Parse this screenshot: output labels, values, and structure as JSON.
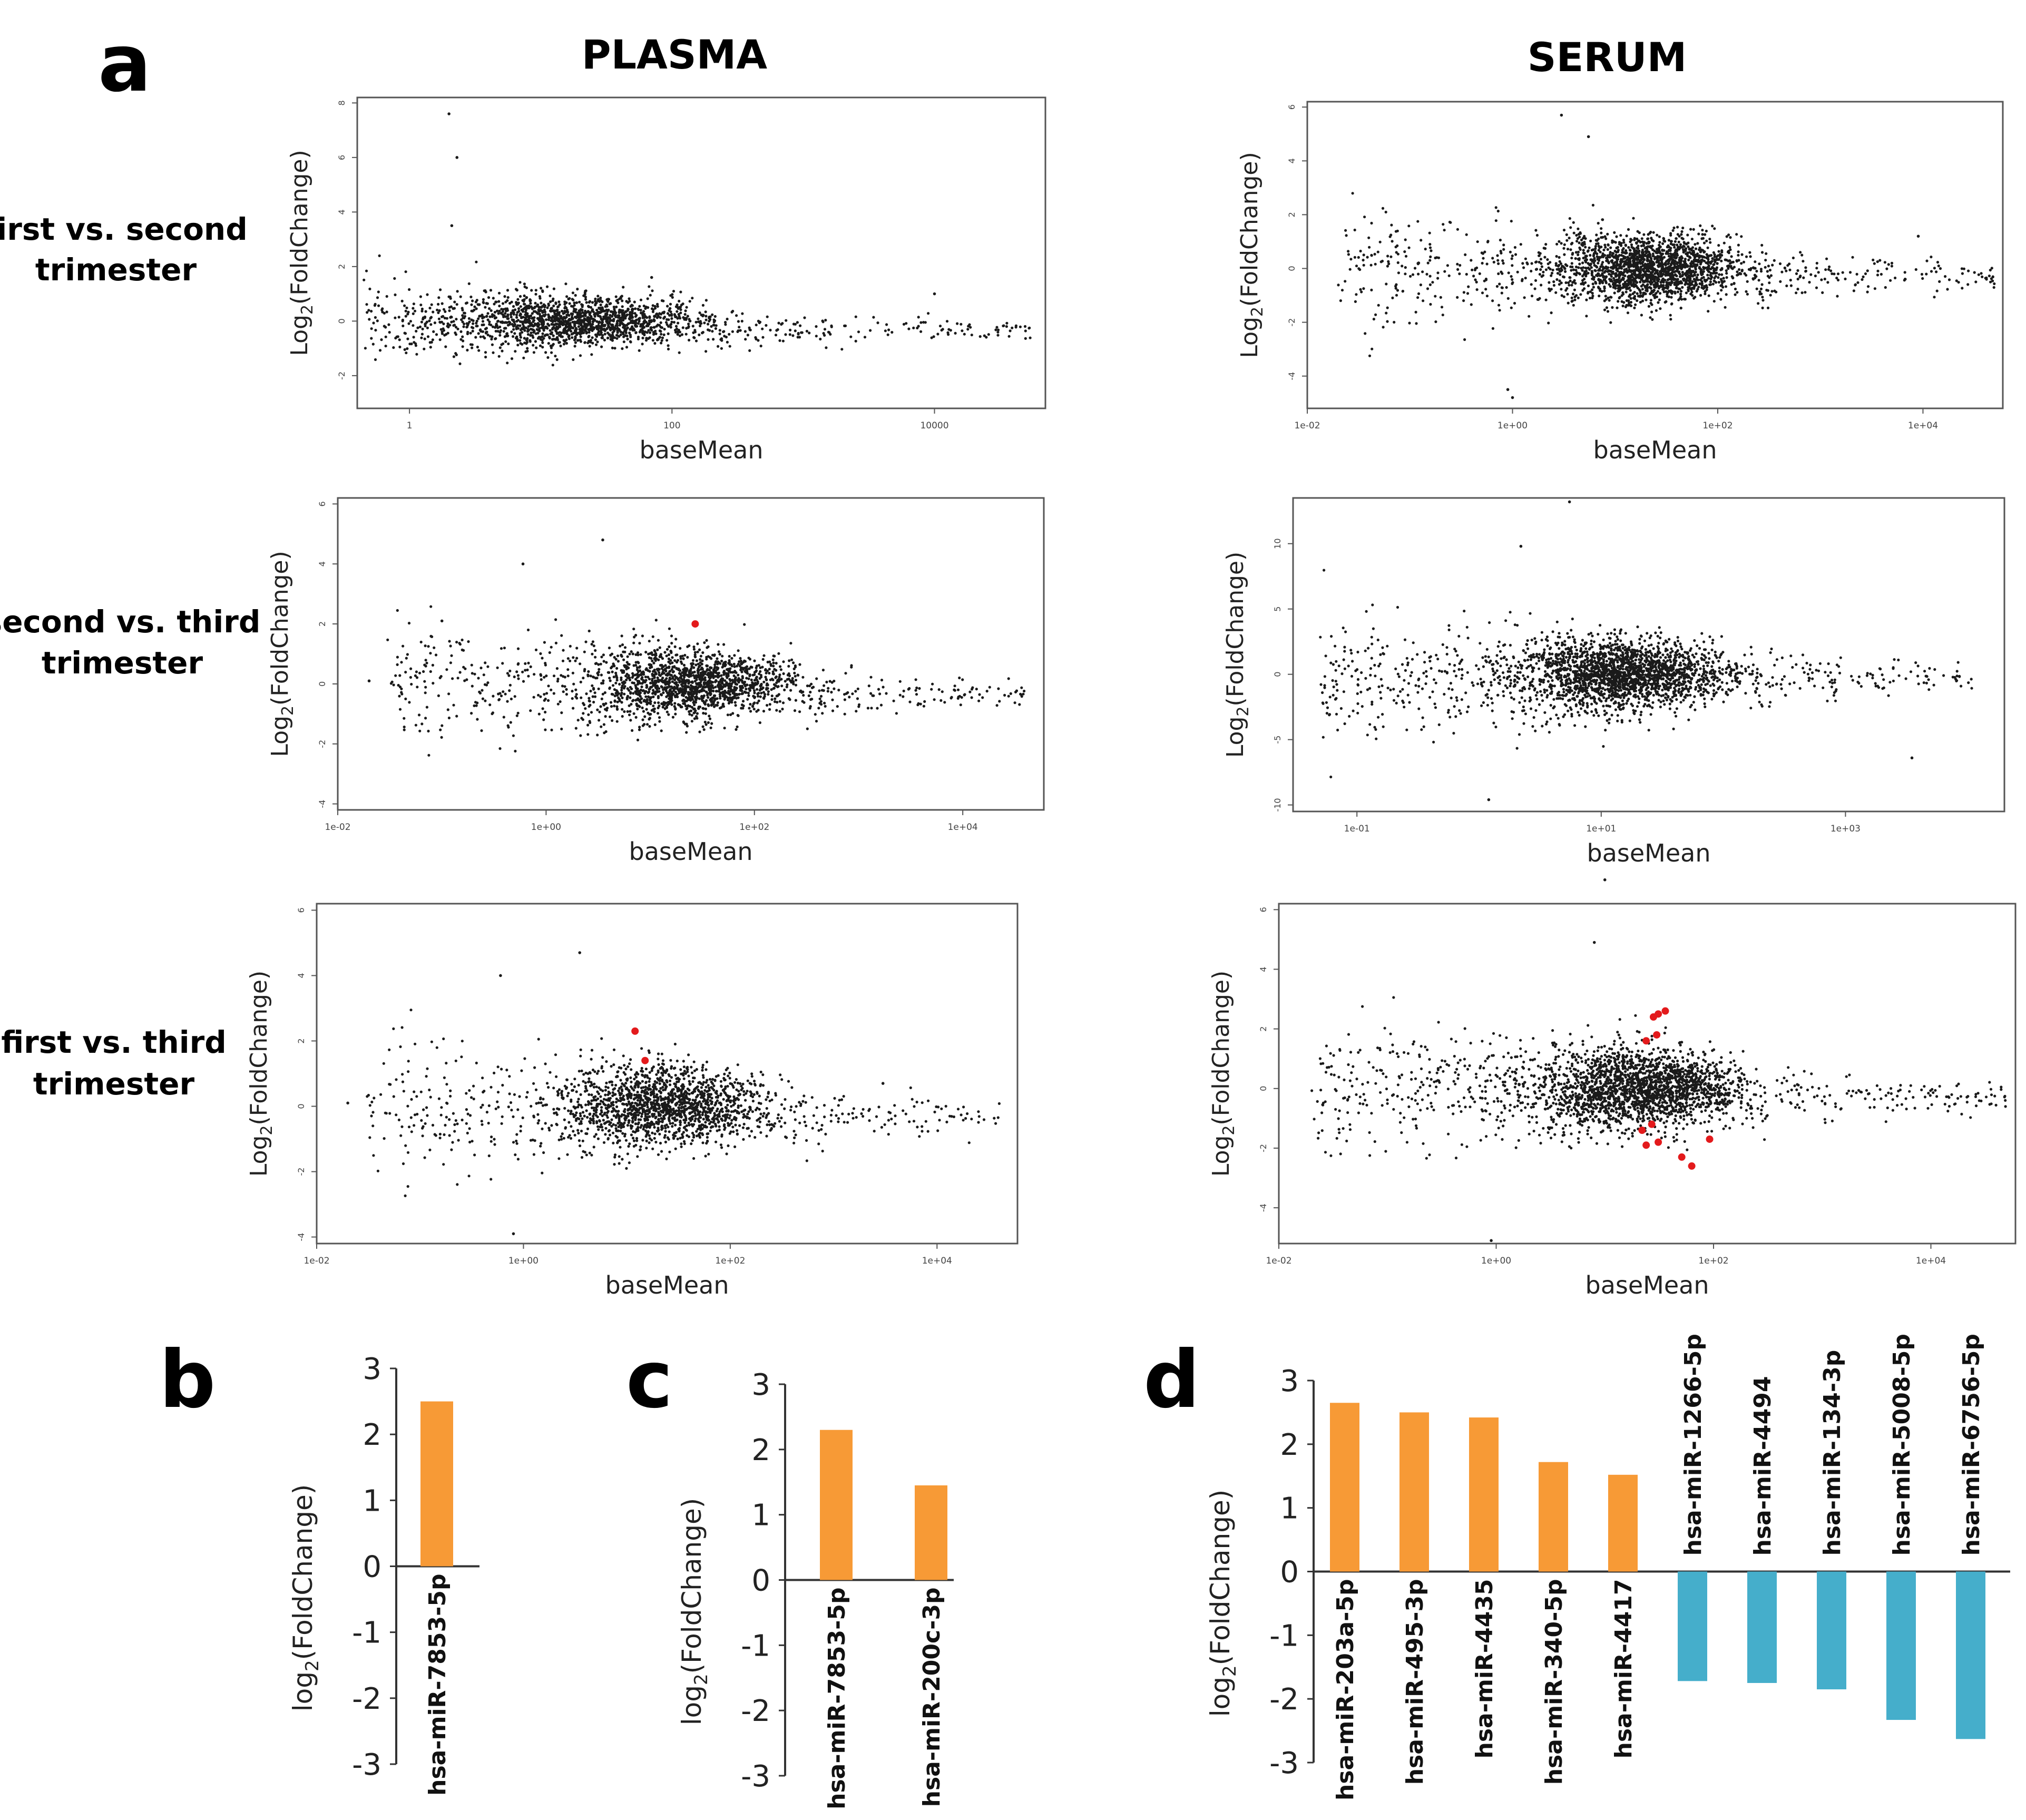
{
  "panel_labels": {
    "a": "a",
    "b": "b",
    "c": "c",
    "d": "d"
  },
  "column_titles": {
    "plasma": "PLASMA",
    "serum": "SERUM"
  },
  "row_labels": [
    {
      "line1": "first vs. second",
      "line2": "trimester"
    },
    {
      "line1": "second vs. third",
      "line2": "trimester"
    },
    {
      "line1": "first vs. third",
      "line2": "trimester"
    }
  ],
  "colors": {
    "points": "#1a1a1a",
    "significant": "#e31a1c",
    "up_bar": "#f79a36",
    "down_bar": "#45aecb",
    "axis": "#333333"
  },
  "chart_data": [
    {
      "id": "ma-plasma-1v2",
      "type": "scatter",
      "title": "PLASMA",
      "xlabel": "baseMean",
      "ylabel": "Log2(FoldChange)",
      "xscale": "log10",
      "xlim": [
        0.4,
        70000
      ],
      "ylim": [
        -3.2,
        8.2
      ],
      "xticks": [
        {
          "v": 1,
          "label": "1"
        },
        {
          "v": 100,
          "label": "100"
        },
        {
          "v": 10000,
          "label": "10000"
        }
      ],
      "yticks": [
        -2,
        0,
        2,
        4,
        6,
        8
      ],
      "cloud": {
        "n": 1900,
        "center": 20,
        "spread": 0.9,
        "xmin": 0.45,
        "tail": 60000,
        "ysd_low": 1.0,
        "ysd_high": 0.2,
        "seed": 11
      },
      "notable_points": [
        {
          "x": 2.0,
          "y": 7.6
        },
        {
          "x": 2.3,
          "y": 6.0
        },
        {
          "x": 2.1,
          "y": 3.5
        },
        {
          "x": 70,
          "y": 1.6
        },
        {
          "x": 10000,
          "y": 1.0
        }
      ],
      "significant_points": []
    },
    {
      "id": "ma-serum-1v2",
      "type": "scatter",
      "title": "SERUM",
      "xlabel": "baseMean",
      "ylabel": "Log2(FoldChange)",
      "xscale": "log10",
      "xlim": [
        0.01,
        60000
      ],
      "ylim": [
        -5.2,
        6.2
      ],
      "xticks": [
        {
          "v": 0.01,
          "label": "1e-02"
        },
        {
          "v": 1,
          "label": "1e+00"
        },
        {
          "v": 100,
          "label": "1e+02"
        },
        {
          "v": 10000,
          "label": "1e+04"
        }
      ],
      "yticks": [
        -4,
        -2,
        0,
        2,
        4,
        6
      ],
      "cloud": {
        "n": 2300,
        "center": 22,
        "spread": 0.8,
        "xmin": 0.02,
        "tail": 50000,
        "ysd_low": 1.6,
        "ysd_high": 0.3,
        "seed": 23
      },
      "notable_points": [
        {
          "x": 3.0,
          "y": 5.7
        },
        {
          "x": 5.5,
          "y": 4.9
        },
        {
          "x": 1.0,
          "y": -4.8
        },
        {
          "x": 0.9,
          "y": -4.5
        },
        {
          "x": 9000,
          "y": 1.2
        }
      ],
      "significant_points": []
    },
    {
      "id": "ma-plasma-2v3",
      "type": "scatter",
      "title": "PLASMA",
      "xlabel": "baseMean",
      "ylabel": "Log2(FoldChange)",
      "xscale": "log10",
      "xlim": [
        0.01,
        60000
      ],
      "ylim": [
        -4.2,
        6.2
      ],
      "xticks": [
        {
          "v": 0.01,
          "label": "1e-02"
        },
        {
          "v": 1,
          "label": "1e+00"
        },
        {
          "v": 100,
          "label": "1e+02"
        },
        {
          "v": 10000,
          "label": "1e+04"
        }
      ],
      "yticks": [
        -4,
        -2,
        0,
        2,
        4,
        6
      ],
      "cloud": {
        "n": 2000,
        "center": 25,
        "spread": 0.85,
        "xmin": 0.03,
        "tail": 40000,
        "ysd_low": 1.5,
        "ysd_high": 0.25,
        "seed": 37
      },
      "notable_points": [
        {
          "x": 3.5,
          "y": 4.8
        },
        {
          "x": 0.6,
          "y": 4.0
        },
        {
          "x": 0.02,
          "y": 0.1
        },
        {
          "x": 0.1,
          "y": 2.1
        }
      ],
      "significant_points": [
        {
          "x": 27,
          "y": 2.0
        }
      ]
    },
    {
      "id": "ma-serum-2v3",
      "type": "scatter",
      "title": "SERUM",
      "xlabel": "baseMean",
      "ylabel": "Log2(FoldChange)",
      "xscale": "log10",
      "xlim": [
        0.03,
        20000
      ],
      "ylim": [
        -10.5,
        13.5
      ],
      "xticks": [
        {
          "v": 0.1,
          "label": "1e-01"
        },
        {
          "v": 10,
          "label": "1e+01"
        },
        {
          "v": 1000,
          "label": "1e+03"
        }
      ],
      "yticks": [
        -10,
        -5,
        0,
        5,
        10
      ],
      "cloud": {
        "n": 2600,
        "center": 15,
        "spread": 0.8,
        "xmin": 0.05,
        "tail": 12000,
        "ysd_low": 3.6,
        "ysd_high": 0.6,
        "seed": 53
      },
      "notable_points": [
        {
          "x": 5.5,
          "y": 13.2
        },
        {
          "x": 2.2,
          "y": 9.8
        },
        {
          "x": 1.2,
          "y": -9.6
        },
        {
          "x": 3500,
          "y": -6.4
        }
      ],
      "significant_points": []
    },
    {
      "id": "ma-plasma-1v3",
      "type": "scatter",
      "title": "PLASMA",
      "xlabel": "baseMean",
      "ylabel": "Log2(FoldChange)",
      "xscale": "log10",
      "xlim": [
        0.01,
        60000
      ],
      "ylim": [
        -4.2,
        6.2
      ],
      "xticks": [
        {
          "v": 0.01,
          "label": "1e-02"
        },
        {
          "v": 1,
          "label": "1e+00"
        },
        {
          "v": 100,
          "label": "1e+02"
        },
        {
          "v": 10000,
          "label": "1e+04"
        }
      ],
      "yticks": [
        -4,
        -2,
        0,
        2,
        4,
        6
      ],
      "cloud": {
        "n": 2000,
        "center": 22,
        "spread": 0.85,
        "xmin": 0.03,
        "tail": 40000,
        "ysd_low": 1.6,
        "ysd_high": 0.3,
        "seed": 71
      },
      "notable_points": [
        {
          "x": 3.5,
          "y": 4.7
        },
        {
          "x": 0.6,
          "y": 4.0
        },
        {
          "x": 0.8,
          "y": -3.9
        },
        {
          "x": 0.02,
          "y": 0.1
        },
        {
          "x": 3000,
          "y": 0.7
        }
      ],
      "significant_points": [
        {
          "x": 12,
          "y": 2.3
        },
        {
          "x": 15,
          "y": 1.4
        }
      ]
    },
    {
      "id": "ma-serum-1v3",
      "type": "scatter",
      "title": "SERUM",
      "xlabel": "baseMean",
      "ylabel": "Log2(FoldChange)",
      "xscale": "log10",
      "xlim": [
        0.01,
        60000
      ],
      "ylim": [
        -5.2,
        6.2
      ],
      "xticks": [
        {
          "v": 0.01,
          "label": "1e-02"
        },
        {
          "v": 1,
          "label": "1e+00"
        },
        {
          "v": 100,
          "label": "1e+02"
        },
        {
          "v": 10000,
          "label": "1e+04"
        }
      ],
      "yticks": [
        -4,
        -2,
        0,
        2,
        4,
        6
      ],
      "cloud": {
        "n": 2600,
        "center": 20,
        "spread": 0.85,
        "xmin": 0.02,
        "tail": 50000,
        "ysd_low": 1.7,
        "ysd_high": 0.3,
        "seed": 89
      },
      "notable_points": [
        {
          "x": 10,
          "y": 7.0
        },
        {
          "x": 0.9,
          "y": -5.1
        },
        {
          "x": 8,
          "y": 4.9
        }
      ],
      "significant_points": [
        {
          "x": 28,
          "y": 2.4
        },
        {
          "x": 31,
          "y": 2.5
        },
        {
          "x": 36,
          "y": 2.6
        },
        {
          "x": 24,
          "y": 1.6
        },
        {
          "x": 30,
          "y": 1.8
        },
        {
          "x": 22,
          "y": -1.4
        },
        {
          "x": 27,
          "y": -1.2
        },
        {
          "x": 24,
          "y": -1.9
        },
        {
          "x": 31,
          "y": -1.8
        },
        {
          "x": 51,
          "y": -2.3
        },
        {
          "x": 63,
          "y": -2.6
        },
        {
          "x": 92,
          "y": -1.7
        }
      ]
    },
    {
      "id": "bar-b",
      "type": "bar",
      "ylabel": "log2(FoldChange)",
      "ylim": [
        -3,
        3
      ],
      "yticks": [
        -3,
        -2,
        -1,
        0,
        1,
        2,
        3
      ],
      "categories": [
        "hsa-miR-7853-5p"
      ],
      "values": [
        2.5
      ]
    },
    {
      "id": "bar-c",
      "type": "bar",
      "ylabel": "log2(FoldChange)",
      "ylim": [
        -3,
        3
      ],
      "yticks": [
        -3,
        -2,
        -1,
        0,
        1,
        2,
        3
      ],
      "categories": [
        "hsa-miR-7853-5p",
        "hsa-miR-200c-3p"
      ],
      "values": [
        2.3,
        1.45
      ]
    },
    {
      "id": "bar-d",
      "type": "bar",
      "ylabel": "log2(FoldChange)",
      "ylim": [
        -3,
        3
      ],
      "yticks": [
        -3,
        -2,
        -1,
        0,
        1,
        2,
        3
      ],
      "categories": [
        "hsa-miR-203a-5p",
        "hsa-miR-495-3p",
        "hsa-miR-4435",
        "hsa-miR-340-5p",
        "hsa-miR-4417",
        "hsa-miR-1266-5p",
        "hsa-miR-4494",
        "hsa-miR-134-3p",
        "hsa-miR-5008-5p",
        "hsa-miR-6756-5p"
      ],
      "values": [
        2.65,
        2.5,
        2.42,
        1.72,
        1.52,
        -1.72,
        -1.75,
        -1.85,
        -2.33,
        -2.63
      ]
    }
  ]
}
